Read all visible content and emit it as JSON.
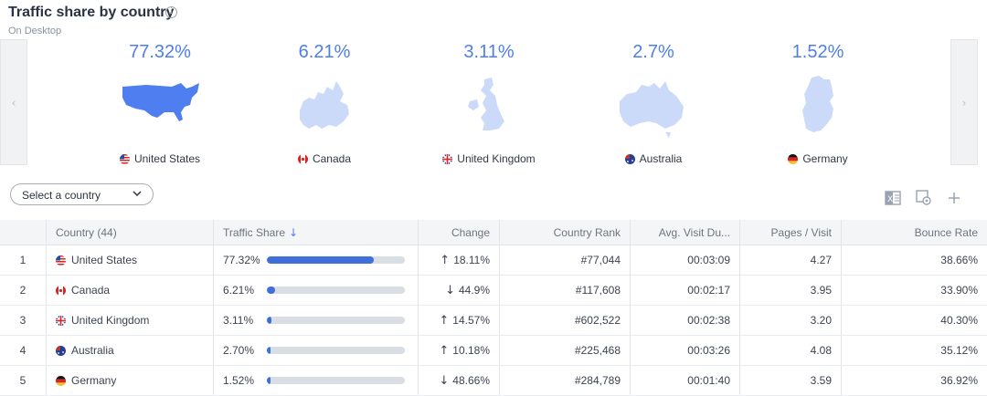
{
  "header": {
    "title": "Traffic share by country",
    "subtitle": "On Desktop",
    "info_icon": "info-icon"
  },
  "cards": [
    {
      "pct": "77.32%",
      "country": "United States",
      "map": "us-map"
    },
    {
      "pct": "6.21%",
      "country": "Canada",
      "map": "canada-map"
    },
    {
      "pct": "3.11%",
      "country": "United Kingdom",
      "map": "uk-map"
    },
    {
      "pct": "2.7%",
      "country": "Australia",
      "map": "australia-map"
    },
    {
      "pct": "1.52%",
      "country": "Germany",
      "map": "germany-map"
    }
  ],
  "colors": {
    "accent": "#4e7ee9",
    "map_primary": "#4f7ef0",
    "map_secondary": "#cbdaf8",
    "bar_fill": "#3f6fd8",
    "up": "#1fa84a",
    "down": "#e5322d"
  },
  "controls": {
    "select_label": "Select a country",
    "left_arrow": "‹",
    "right_arrow": "›",
    "icons": [
      "excel-export-icon",
      "settings-icon",
      "add-icon"
    ]
  },
  "table": {
    "headers": {
      "country": "Country (44)",
      "traffic_share": "Traffic Share",
      "change": "Change",
      "country_rank": "Country Rank",
      "avg_visit": "Avg. Visit Du...",
      "pages_visit": "Pages / Visit",
      "bounce_rate": "Bounce Rate"
    },
    "rows": [
      {
        "num": "1",
        "country": "United States",
        "share": "77.32%",
        "share_fraction": 0.7732,
        "change": "18.11%",
        "direction": "up",
        "rank": "#77,044",
        "avg_visit": "00:03:09",
        "pages": "4.27",
        "bounce": "38.66%"
      },
      {
        "num": "2",
        "country": "Canada",
        "share": "6.21%",
        "share_fraction": 0.0621,
        "change": "44.9%",
        "direction": "down",
        "rank": "#117,608",
        "avg_visit": "00:02:17",
        "pages": "3.95",
        "bounce": "33.90%"
      },
      {
        "num": "3",
        "country": "United Kingdom",
        "share": "3.11%",
        "share_fraction": 0.0311,
        "change": "14.57%",
        "direction": "up",
        "rank": "#602,522",
        "avg_visit": "00:02:38",
        "pages": "3.20",
        "bounce": "40.30%"
      },
      {
        "num": "4",
        "country": "Australia",
        "share": "2.70%",
        "share_fraction": 0.027,
        "change": "10.18%",
        "direction": "up",
        "rank": "#225,468",
        "avg_visit": "00:03:26",
        "pages": "4.08",
        "bounce": "35.12%"
      },
      {
        "num": "5",
        "country": "Germany",
        "share": "1.52%",
        "share_fraction": 0.0152,
        "change": "48.66%",
        "direction": "down",
        "rank": "#284,789",
        "avg_visit": "00:01:40",
        "pages": "3.59",
        "bounce": "36.92%"
      }
    ]
  }
}
